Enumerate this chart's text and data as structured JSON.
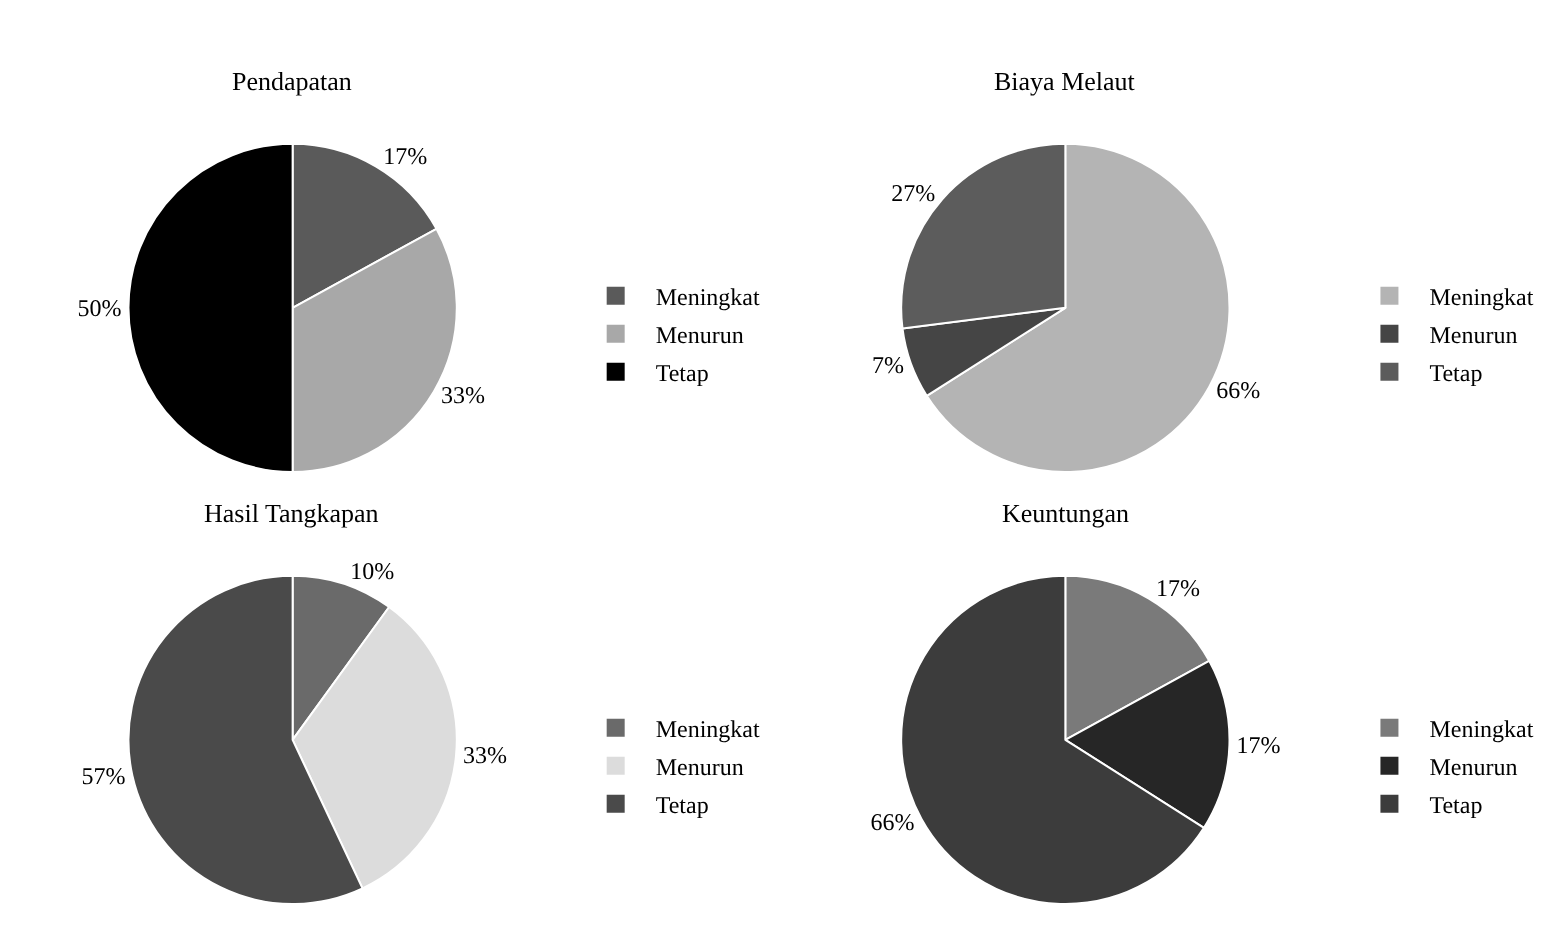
{
  "chart_data": [
    {
      "type": "pie",
      "title": "Pendapatan",
      "categories": [
        "Meningkat",
        "Menurun",
        "Tetap"
      ],
      "values": [
        17,
        33,
        50
      ],
      "value_labels": [
        "17%",
        "33%",
        "50%"
      ],
      "colors": [
        "#5a5a5a",
        "#a8a8a8",
        "#000000"
      ],
      "legend": "right"
    },
    {
      "type": "pie",
      "title": "Biaya Melaut",
      "categories": [
        "Meningkat",
        "Menurun",
        "Tetap"
      ],
      "values": [
        66,
        7,
        27
      ],
      "value_labels": [
        "66%",
        "7%",
        "27%"
      ],
      "colors": [
        "#b4b4b4",
        "#454545",
        "#5c5c5c"
      ],
      "legend": "right"
    },
    {
      "type": "pie",
      "title": "Hasil Tangkapan",
      "categories": [
        "Meningkat",
        "Menurun",
        "Tetap"
      ],
      "values": [
        10,
        33,
        57
      ],
      "value_labels": [
        "10%",
        "33%",
        "57%"
      ],
      "colors": [
        "#6a6a6a",
        "#dcdcdc",
        "#4a4a4a"
      ],
      "legend": "right"
    },
    {
      "type": "pie",
      "title": "Keuntungan",
      "categories": [
        "Meningkat",
        "Menurun",
        "Tetap"
      ],
      "values": [
        17,
        17,
        66
      ],
      "value_labels": [
        "17%",
        "17%",
        "66%"
      ],
      "colors": [
        "#7a7a7a",
        "#262626",
        "#3c3c3c"
      ],
      "legend": "right"
    }
  ]
}
